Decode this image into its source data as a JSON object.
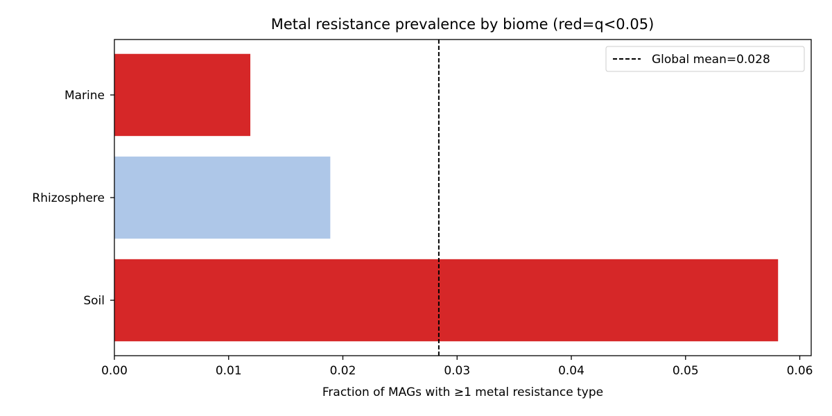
{
  "chart_data": {
    "type": "bar",
    "orientation": "horizontal",
    "title": "Metal resistance prevalence by biome (red=q<0.05)",
    "xlabel": "Fraction of MAGs with ≥1 metal resistance type",
    "ylabel": "",
    "categories": [
      "Marine",
      "Rhizosphere",
      "Soil"
    ],
    "values": [
      0.0119,
      0.0189,
      0.0581
    ],
    "significant": [
      true,
      false,
      true
    ],
    "colors": {
      "significant": "#d62728",
      "not_significant": "#aec7e8",
      "mean_line": "#000000"
    },
    "xlim": [
      0,
      0.061
    ],
    "xticks": [
      0.0,
      0.01,
      0.02,
      0.03,
      0.04,
      0.05,
      0.06
    ],
    "xtick_labels": [
      "0.00",
      "0.01",
      "0.02",
      "0.03",
      "0.04",
      "0.05",
      "0.06"
    ],
    "reference_line": {
      "value": 0.0284,
      "style": "dashed",
      "label": "Global mean=0.028"
    },
    "legend": {
      "placement": "top-right"
    },
    "grid": false
  }
}
